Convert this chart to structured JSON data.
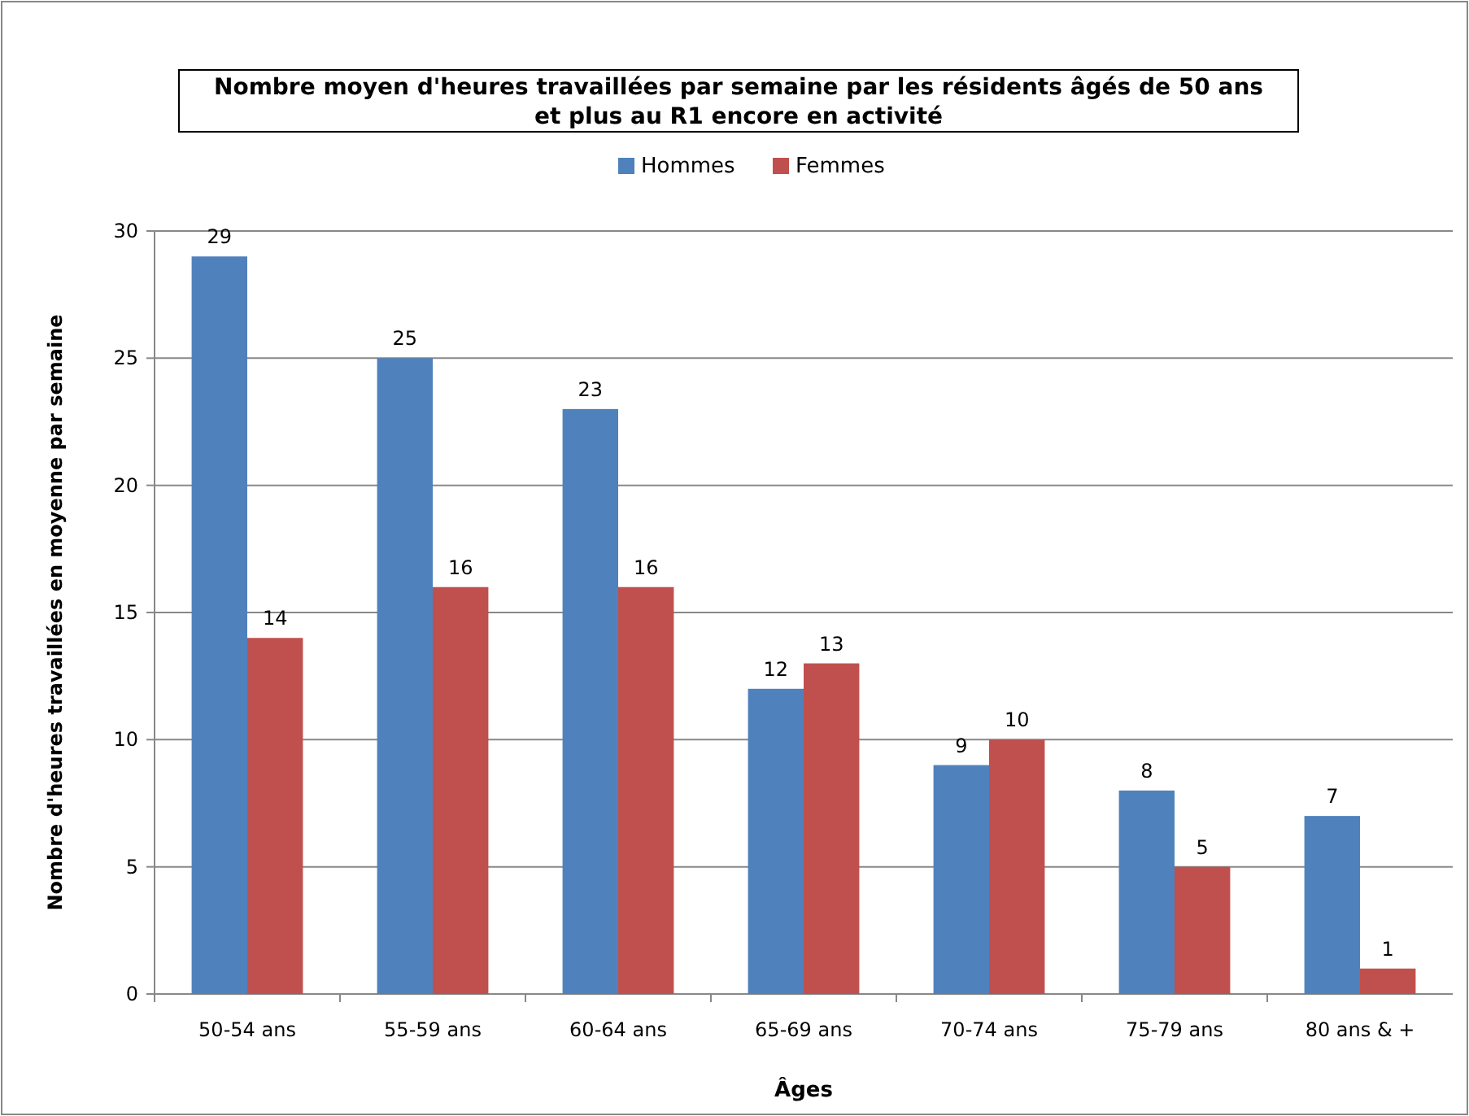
{
  "chart_data": {
    "type": "bar",
    "title": "Nombre moyen d'heures travaillées par semaine par les résidents âgés de 50 ans et plus au R1 encore en activité",
    "xlabel": "Âges",
    "ylabel": "Nombre d'heures travaillées en moyenne par semaine",
    "categories": [
      "50-54 ans",
      "55-59 ans",
      "60-64 ans",
      "65-69 ans",
      "70-74 ans",
      "75-79 ans",
      "80 ans & +"
    ],
    "series": [
      {
        "name": "Hommes",
        "color": "#4f81bd",
        "values": [
          29,
          25,
          23,
          12,
          9,
          8,
          7
        ]
      },
      {
        "name": "Femmes",
        "color": "#c0504d",
        "values": [
          14,
          16,
          16,
          13,
          10,
          5,
          1
        ]
      }
    ],
    "ylim": [
      0,
      30
    ],
    "yticks": [
      0,
      5,
      10,
      15,
      20,
      25,
      30
    ],
    "grid": "y",
    "legend": "top",
    "data_labels": true
  }
}
